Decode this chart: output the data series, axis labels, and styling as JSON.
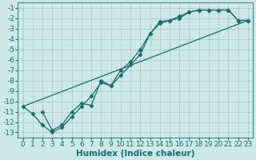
{
  "xlabel": "Humidex (Indice chaleur)",
  "bg_color": "#cce8e8",
  "grid_color": "#aacccc",
  "line_color": "#1a6b6b",
  "marker_color": "#1a6b6b",
  "xlim": [
    -0.5,
    23.5
  ],
  "ylim": [
    -13.5,
    -0.5
  ],
  "xticks": [
    0,
    1,
    2,
    3,
    4,
    5,
    6,
    7,
    8,
    9,
    10,
    11,
    12,
    13,
    14,
    15,
    16,
    17,
    18,
    19,
    20,
    21,
    22,
    23
  ],
  "yticks": [
    -13,
    -12,
    -11,
    -10,
    -9,
    -8,
    -7,
    -6,
    -5,
    -4,
    -3,
    -2,
    -1
  ],
  "line1_x": [
    0,
    1,
    2,
    3,
    4,
    5,
    6,
    7,
    8,
    9,
    10,
    11,
    12,
    13,
    14,
    15,
    16,
    17,
    18,
    19,
    20,
    21,
    22,
    23
  ],
  "line1_y": [
    -10.5,
    -11.2,
    -12.3,
    -13.0,
    -12.5,
    -11.5,
    -10.5,
    -9.5,
    -8.2,
    -8.5,
    -7.5,
    -6.5,
    -5.5,
    -3.5,
    -2.3,
    -2.2,
    -2.0,
    -1.4,
    -1.2,
    -1.2,
    -1.2,
    -1.2,
    -2.2,
    -2.2
  ],
  "line2_x": [
    2,
    3,
    4,
    5,
    6,
    7,
    8,
    9,
    10,
    11,
    12,
    13,
    14,
    15,
    16,
    17,
    18,
    19,
    20,
    21,
    22,
    23
  ],
  "line2_y": [
    -11.0,
    -12.8,
    -12.3,
    -11.0,
    -10.2,
    -10.4,
    -8.0,
    -8.5,
    -7.0,
    -6.2,
    -5.0,
    -3.5,
    -2.5,
    -2.2,
    -1.8,
    -1.4,
    -1.2,
    -1.2,
    -1.2,
    -1.2,
    -2.2,
    -2.2
  ],
  "line3_x": [
    0,
    23
  ],
  "line3_y": [
    -10.5,
    -2.2
  ],
  "font_size": 6.5
}
